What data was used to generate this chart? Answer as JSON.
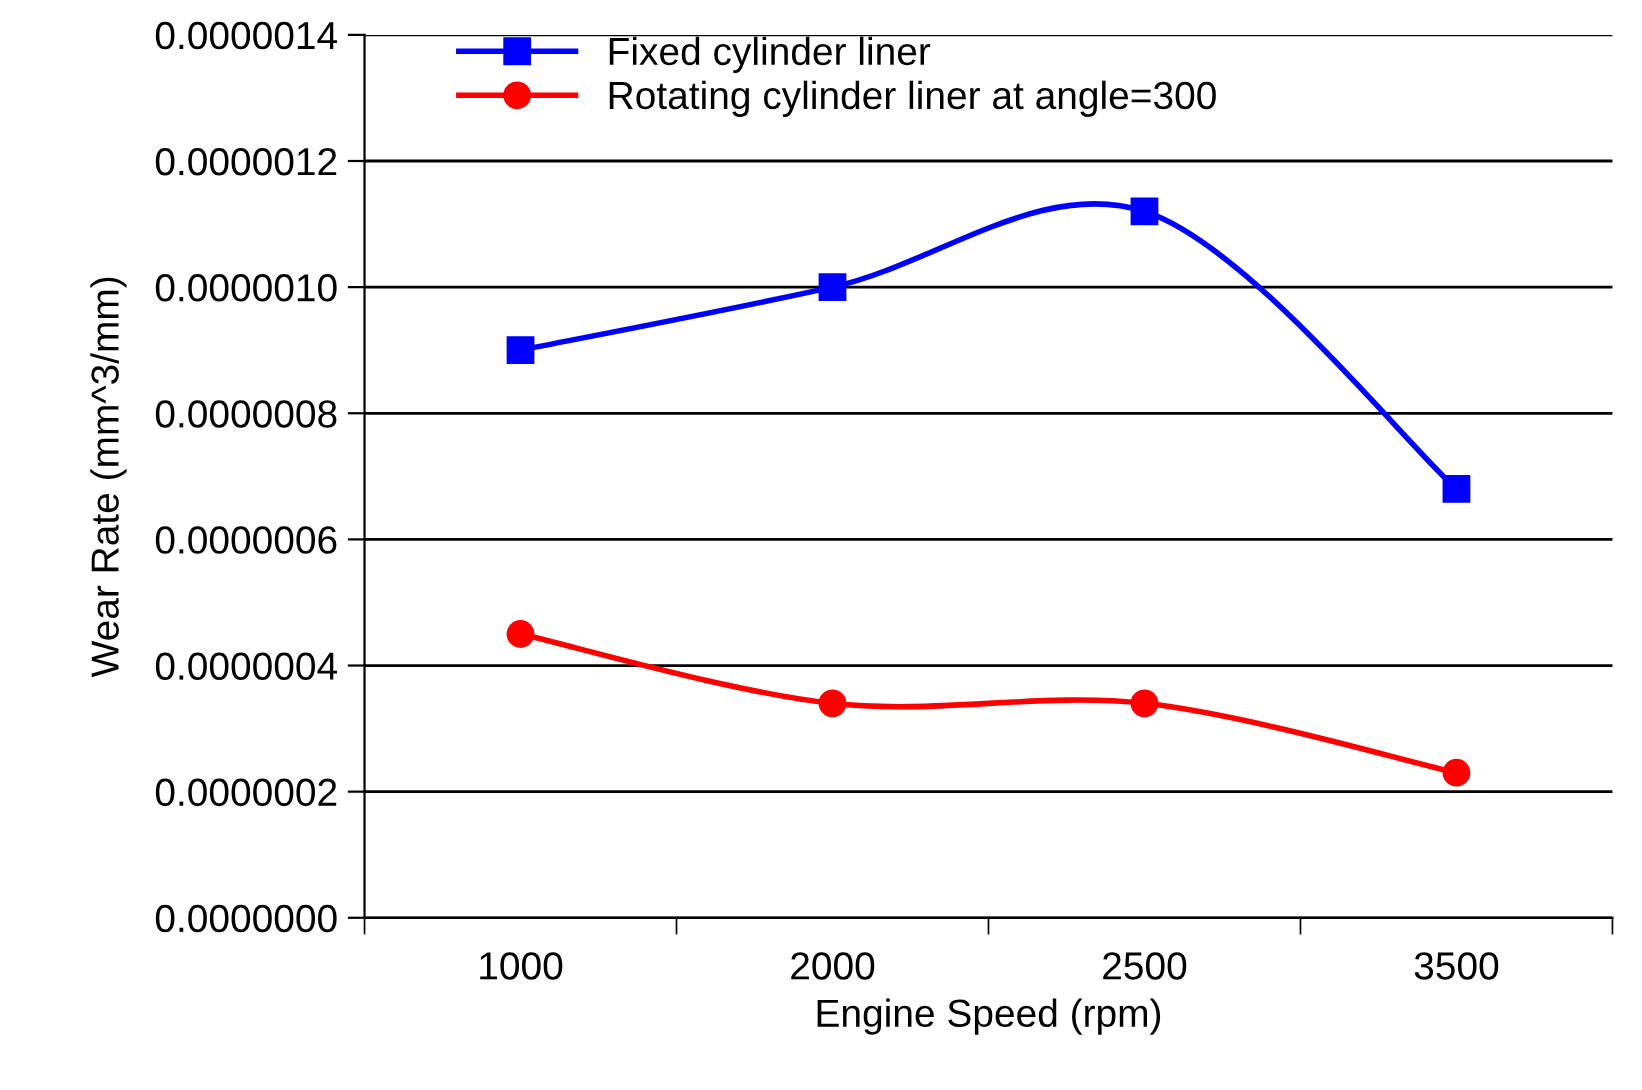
{
  "chart_data": {
    "type": "line",
    "xlabel": "Engine Speed (rpm)",
    "ylabel": "Wear Rate (mm^3/mm)",
    "categories": [
      "1000",
      "2000",
      "2500",
      "3500"
    ],
    "series": [
      {
        "name": "Fixed cylinder liner",
        "color": "#0000ff",
        "marker": "square",
        "values": [
          9e-07,
          1e-06,
          1.12e-06,
          6.8e-07
        ]
      },
      {
        "name": "Rotating cylinder liner at angle=300",
        "color": "#ff0000",
        "marker": "circle",
        "values": [
          4.5e-07,
          3.4e-07,
          3.4e-07,
          2.3e-07
        ]
      }
    ],
    "ylim": [
      0,
      1.4e-06
    ],
    "yticks": [
      {
        "value": 0,
        "label": "0.0000000"
      },
      {
        "value": 2e-07,
        "label": "0.0000002"
      },
      {
        "value": 4e-07,
        "label": "0.0000004"
      },
      {
        "value": 6e-07,
        "label": "0.0000006"
      },
      {
        "value": 8e-07,
        "label": "0.0000008"
      },
      {
        "value": 1e-06,
        "label": "0.0000010"
      },
      {
        "value": 1.2e-06,
        "label": "0.0000012"
      },
      {
        "value": 1.4e-06,
        "label": "0.0000014"
      }
    ],
    "grid": "y",
    "legend": "top left",
    "line_style": "solid"
  }
}
